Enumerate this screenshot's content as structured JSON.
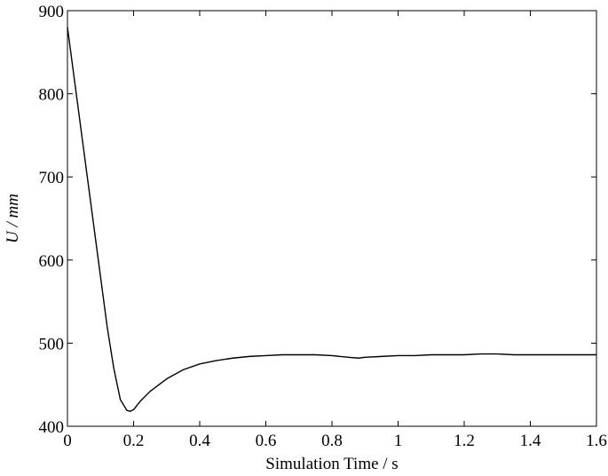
{
  "chart_data": {
    "type": "line",
    "title": "",
    "xlabel": "Simulation Time / s",
    "ylabel": "U / mm",
    "xlim": [
      0,
      1.6
    ],
    "ylim": [
      400,
      900
    ],
    "grid": false,
    "x_ticks": [
      0,
      0.2,
      0.4,
      0.6,
      0.8,
      1,
      1.2,
      1.4,
      1.6
    ],
    "x_tick_labels": [
      "0",
      "0.2",
      "0.4",
      "0.6",
      "0.8",
      "1",
      "1.2",
      "1.4",
      "1.6"
    ],
    "y_ticks": [
      400,
      500,
      600,
      700,
      800,
      900
    ],
    "y_tick_labels": [
      "400",
      "500",
      "600",
      "700",
      "800",
      "900"
    ],
    "line_color": "#000000",
    "series": [
      {
        "x": [
          0,
          0.01,
          0.02,
          0.04,
          0.06,
          0.08,
          0.1,
          0.12,
          0.14,
          0.16,
          0.18,
          0.19,
          0.2,
          0.22,
          0.25,
          0.3,
          0.35,
          0.4,
          0.45,
          0.5,
          0.55,
          0.6,
          0.65,
          0.7,
          0.75,
          0.8,
          0.85,
          0.88,
          0.9,
          0.95,
          1.0,
          1.05,
          1.1,
          1.15,
          1.2,
          1.25,
          1.3,
          1.35,
          1.4,
          1.5,
          1.6
        ],
        "values": [
          880,
          850,
          820,
          760,
          700,
          640,
          580,
          520,
          470,
          432,
          419,
          418,
          420,
          430,
          442,
          457,
          468,
          475,
          479,
          482,
          484,
          485,
          486,
          486,
          486,
          485,
          483,
          482,
          483,
          484,
          485,
          485,
          486,
          486,
          486,
          487,
          487,
          486,
          486,
          486,
          486
        ]
      }
    ]
  }
}
